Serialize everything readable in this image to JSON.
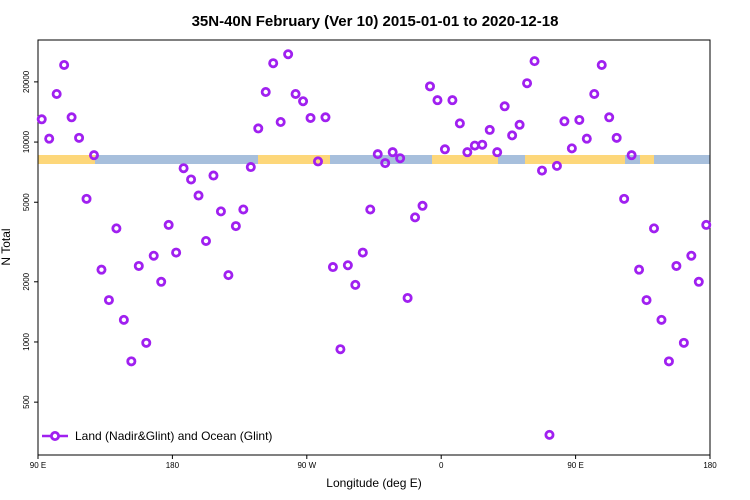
{
  "chart_data": {
    "type": "scatter",
    "title": "35N-40N February (Ver 10)   2015-01-01 to 2020-12-18",
    "x_label": "Longitude (deg E)",
    "y_label": "N Total",
    "log_y": true,
    "legend_position": "bottom-left",
    "xlim": [
      90,
      540
    ],
    "xticks": [
      {
        "value": 90,
        "label": "90 E"
      },
      180,
      {
        "value": 270,
        "label": "90 W"
      },
      {
        "value": 360,
        "label": "0"
      },
      {
        "value": 450,
        "label": "90 E"
      },
      {
        "value": 540,
        "label": "180"
      }
    ],
    "ylim": [
      272,
      32400
    ],
    "yticks": [
      500,
      1000,
      2000,
      5000,
      10000,
      20000
    ],
    "series": [
      {
        "name": "Land (Nadir&Glint) and Ocean (Glint)",
        "color": "#a020f0",
        "x": [
          92.5,
          97.5,
          102.5,
          107.5,
          112.5,
          117.5,
          122.5,
          127.5,
          132.5,
          137.5,
          142.5,
          147.5,
          152.5,
          157.5,
          162.5,
          167.5,
          172.5,
          177.5,
          182.5,
          187.5,
          192.5,
          197.5,
          202.5,
          207.5,
          212.5,
          217.5,
          222.5,
          227.5,
          232.5,
          237.5,
          242.5,
          247.5,
          252.5,
          257.5,
          262.5,
          267.5,
          272.5,
          277.5,
          282.5,
          287.5,
          292.5,
          297.5,
          302.5,
          307.5,
          312.5,
          317.5,
          322.5,
          327.5,
          332.5,
          337.5,
          342.5,
          347.5,
          352.5,
          357.5,
          362.5,
          367.5,
          372.5,
          377.5,
          382.5,
          387.5,
          392.5,
          397.5,
          402.5,
          407.5,
          412.5,
          417.5,
          422.5,
          427.5,
          432.5,
          437.5,
          442.5,
          447.5,
          452.5,
          457.5,
          462.5,
          467.5,
          472.5,
          477.5,
          482.5,
          487.5,
          492.5,
          497.5,
          502.5,
          507.5,
          512.5,
          517.5,
          522.5,
          527.5,
          532.5,
          537.5
        ],
        "values": [
          13000,
          10400,
          17400,
          24300,
          13300,
          10500,
          5200,
          8600,
          2300,
          1620,
          3700,
          1290,
          800,
          2400,
          990,
          2700,
          2000,
          3850,
          2800,
          7400,
          6500,
          5400,
          3200,
          6800,
          4500,
          2160,
          3800,
          4600,
          7500,
          11700,
          17800,
          24800,
          12600,
          27500,
          17400,
          16000,
          13200,
          8000,
          13300,
          2370,
          920,
          2420,
          1930,
          2800,
          4600,
          8700,
          7850,
          8900,
          8300,
          1660,
          4200,
          4800,
          19000,
          16200,
          9200,
          16200,
          12400,
          8900,
          9600,
          9700,
          11500,
          8900,
          15100,
          10800,
          12200,
          19700,
          25400,
          7200,
          343,
          7600,
          12700,
          9300,
          12900,
          10400,
          17400,
          24300,
          13300,
          10500,
          5200,
          8600,
          2300,
          1620,
          3700,
          1290,
          800,
          2400,
          990,
          2700,
          2000,
          3850
        ]
      }
    ]
  }
}
